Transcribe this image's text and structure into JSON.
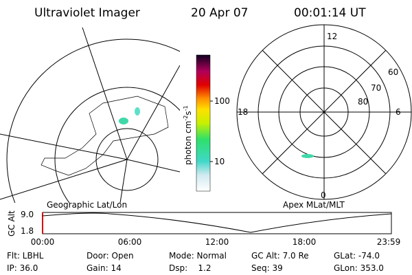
{
  "header": {
    "title": "Ultraviolet Imager",
    "date": "20 Apr 07",
    "time": "00:01:14 UT"
  },
  "colorbar": {
    "label": [
      "photon cm",
      "-2",
      "s",
      "-1"
    ],
    "ticks": [
      "100",
      "10"
    ]
  },
  "geo_panel": {
    "label": "Geographic Lat/Lon"
  },
  "polar_panel": {
    "label": "Apex MLat/MLT",
    "hours": [
      "12",
      "18",
      "6",
      "0"
    ],
    "lats": [
      "60",
      "70",
      "80"
    ]
  },
  "alt_panel": {
    "axis_label": "GC Alt",
    "y_labels": [
      "9.0",
      "1.8"
    ],
    "x_labels": [
      "00:00",
      "06:00",
      "12:00",
      "18:00",
      "23:59"
    ]
  },
  "info": {
    "rows": [
      [
        "Flt: LBHL",
        "Door: Open",
        "Mode: Normal",
        "GC Alt: 7.0 Re",
        "GLat: -74.0"
      ],
      [
        "IP: 36.0",
        "Gain: 14",
        "Dsp:    1.2",
        "Seq: 39",
        "GLon: 353.0"
      ]
    ]
  }
}
